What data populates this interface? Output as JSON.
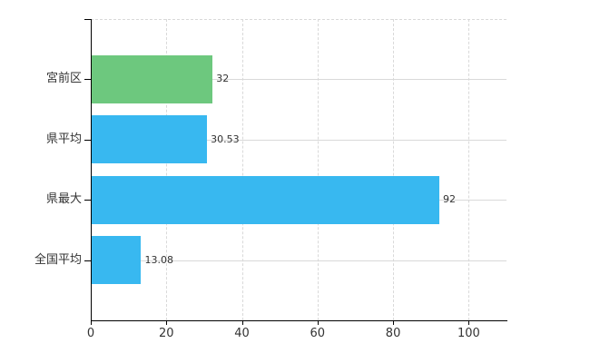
{
  "chart_data": {
    "type": "bar",
    "orientation": "horizontal",
    "categories": [
      "宮前区",
      "県平均",
      "県最大",
      "全国平均"
    ],
    "values": [
      32,
      30.53,
      92,
      13.08
    ],
    "value_labels": [
      "32",
      "30.53",
      "92",
      "13.08"
    ],
    "bar_colors": [
      "#6dc87e",
      "#38b8f0",
      "#38b8f0",
      "#38b8f0"
    ],
    "xlim": [
      0,
      110
    ],
    "xticks": [
      0,
      20,
      40,
      60,
      80,
      100
    ],
    "xtick_labels": [
      "0",
      "20",
      "40",
      "60",
      "80",
      "100"
    ],
    "title": "",
    "xlabel": "",
    "ylabel": "",
    "legend": null,
    "grid": {
      "vertical_style": "dashed",
      "horizontal_style": "solid",
      "color": "#d9d9d9",
      "top_border_style": "dashed"
    },
    "axis_color": "#000000",
    "text_color": "#333333",
    "background_color": "#ffffff"
  }
}
